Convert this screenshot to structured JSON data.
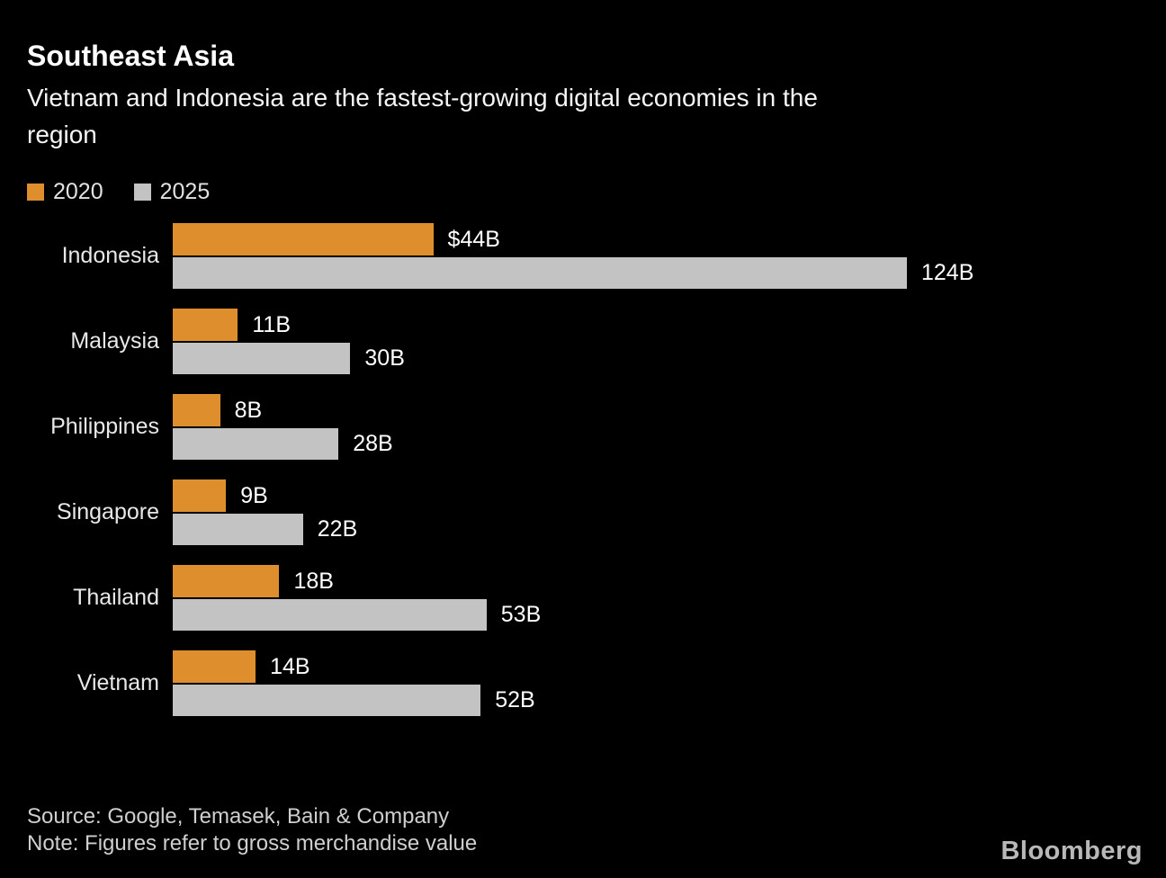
{
  "header": {
    "title": "Southeast Asia",
    "subtitle": "Vietnam and Indonesia are the fastest-growing digital economies in the region",
    "subtitle_lines": [
      "Vietnam and Indonesia are the fastest-growing digital economies in the",
      "region"
    ]
  },
  "legend": {
    "items": [
      {
        "label": "2020",
        "color": "#DE8E2D"
      },
      {
        "label": "2025",
        "color": "#C3C3C3"
      }
    ]
  },
  "chart_data": {
    "type": "bar",
    "orientation": "horizontal",
    "title": "Southeast Asia",
    "subtitle": "Vietnam and Indonesia are the fastest-growing digital economies in the region",
    "categories": [
      "Indonesia",
      "Malaysia",
      "Philippines",
      "Singapore",
      "Thailand",
      "Vietnam"
    ],
    "series": [
      {
        "name": "2020",
        "color": "#DE8E2D",
        "values": [
          44,
          11,
          8,
          9,
          18,
          14
        ],
        "labels": [
          "$44B",
          "11B",
          "8B",
          "9B",
          "18B",
          "14B"
        ]
      },
      {
        "name": "2025",
        "color": "#C3C3C3",
        "values": [
          124,
          30,
          28,
          22,
          53,
          52
        ],
        "labels": [
          "124B",
          "30B",
          "28B",
          "22B",
          "53B",
          "52B"
        ]
      }
    ],
    "unit": "billion USD (gross merchandise value)",
    "xlim": [
      0,
      124
    ],
    "grid": false,
    "legend_position": "top-left",
    "value_labels": "outside-end"
  },
  "footer": {
    "source": "Source: Google, Temasek, Bain & Company",
    "note": "Note: Figures refer to gross merchandise value",
    "brand": "Bloomberg"
  }
}
